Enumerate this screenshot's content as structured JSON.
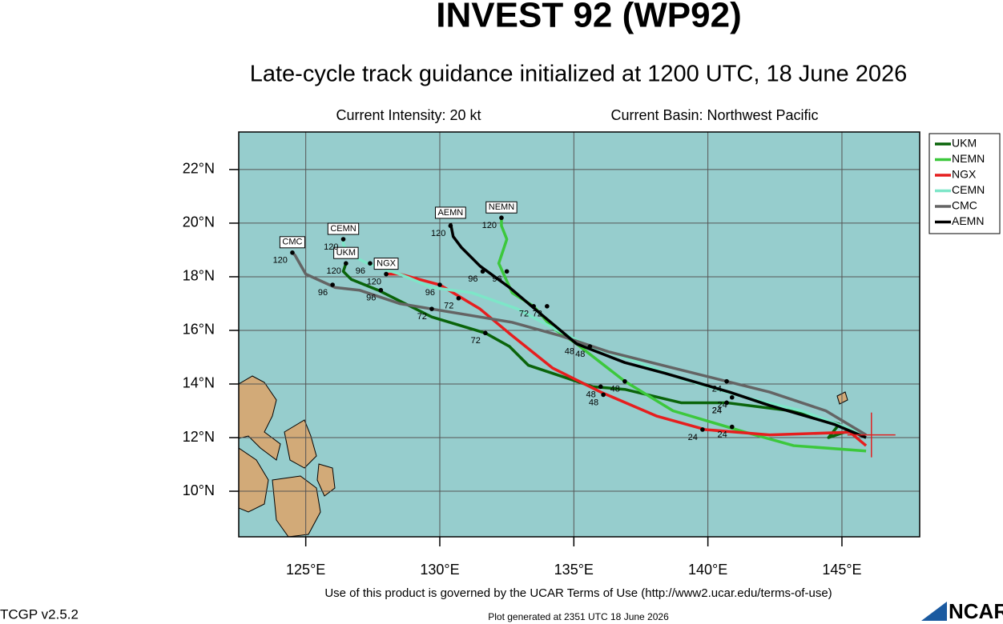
{
  "chart_data": {
    "type": "track-map",
    "title": "INVEST 92 (WP92)",
    "subtitle": "Late-cycle track guidance initialized at 1200 UTC, 18 June 2026",
    "intensity": "Current Intensity: 20 kt",
    "basin": "Current Basin: Northwest Pacific",
    "terms": "Use of this product is governed by the UCAR Terms of Use (http://www2.ucar.edu/terms-of-use)",
    "version": "TCGP v2.5.2",
    "generated": "Plot generated at 2351 UTC   18 June 2026",
    "logo": "NCAR",
    "xlim": [
      122.5,
      147.9
    ],
    "ylim": [
      8.3,
      23.4
    ],
    "xticks": [
      {
        "value": 125,
        "label": "125°E"
      },
      {
        "value": 130,
        "label": "130°E"
      },
      {
        "value": 135,
        "label": "135°E"
      },
      {
        "value": 140,
        "label": "140°E"
      },
      {
        "value": 145,
        "label": "145°E"
      }
    ],
    "yticks": [
      {
        "value": 10,
        "label": "10°N"
      },
      {
        "value": 12,
        "label": "12°N"
      },
      {
        "value": 14,
        "label": "14°N"
      },
      {
        "value": 16,
        "label": "16°N"
      },
      {
        "value": 18,
        "label": "18°N"
      },
      {
        "value": 20,
        "label": "20°N"
      },
      {
        "value": 22,
        "label": "22°N"
      }
    ],
    "grid": true,
    "legend": "top-right-outside",
    "background": "#96cdcd",
    "current_position": {
      "lon": 146.1,
      "lat": 12.1,
      "color": "#e02020"
    },
    "series": [
      {
        "name": "UKM",
        "color": "#0a640a",
        "lon": [
          145.9,
          145.4,
          144.5,
          144.9,
          143.1,
          140.7,
          139.0,
          136.9,
          135.7,
          134.5,
          133.3,
          132.6,
          131.7,
          129.7,
          127.7,
          126.7,
          126.4,
          126.5
        ],
        "lat": [
          12.1,
          12.3,
          12.0,
          12.5,
          13.0,
          13.3,
          13.3,
          13.8,
          13.9,
          14.3,
          14.7,
          15.4,
          15.9,
          16.5,
          17.5,
          17.9,
          18.2,
          18.5
        ],
        "hour_labels": [
          {
            "text": "24",
            "lon": 140.7,
            "lat": 13.3
          },
          {
            "text": "48",
            "lon": 136.0,
            "lat": 13.9
          },
          {
            "text": "72",
            "lon": 131.7,
            "lat": 15.9
          },
          {
            "text": "96",
            "lon": 127.8,
            "lat": 17.5
          },
          {
            "text": "120",
            "lon": 126.5,
            "lat": 18.5
          }
        ]
      },
      {
        "name": "NEMN",
        "color": "#3cc83c",
        "lon": [
          145.9,
          143.2,
          141.4,
          138.7,
          136.9,
          135.1,
          134.2,
          133.5,
          132.7,
          132.2,
          132.5,
          132.3,
          132.3
        ],
        "lat": [
          11.5,
          11.7,
          12.2,
          13.0,
          14.1,
          15.5,
          16.1,
          16.9,
          17.4,
          18.5,
          19.4,
          19.9,
          20.2
        ],
        "hour_labels": [
          {
            "text": "24",
            "lon": 140.9,
            "lat": 12.4
          },
          {
            "text": "48",
            "lon": 136.9,
            "lat": 14.1
          },
          {
            "text": "72",
            "lon": 133.5,
            "lat": 16.9
          },
          {
            "text": "96",
            "lon": 132.5,
            "lat": 18.2
          },
          {
            "text": "120",
            "lon": 132.3,
            "lat": 20.2
          }
        ]
      },
      {
        "name": "NGX",
        "color": "#e61e1e",
        "lon": [
          145.9,
          145.3,
          142.3,
          139.9,
          138.1,
          136.0,
          134.2,
          132.7,
          131.5,
          130.0,
          128.5,
          128.0
        ],
        "lat": [
          11.7,
          12.2,
          12.1,
          12.3,
          12.8,
          13.7,
          14.6,
          15.8,
          16.8,
          17.7,
          18.1,
          18.1
        ],
        "hour_labels": [
          {
            "text": "24",
            "lon": 139.8,
            "lat": 12.3
          },
          {
            "text": "48",
            "lon": 136.1,
            "lat": 13.6
          },
          {
            "text": "72",
            "lon": 130.7,
            "lat": 17.2
          },
          {
            "text": "96",
            "lon": 130.0,
            "lat": 17.7
          },
          {
            "text": "120",
            "lon": 128.0,
            "lat": 18.1
          }
        ]
      },
      {
        "name": "CEMN",
        "color": "#7de6c8",
        "lon": [
          145.9,
          143.5,
          141.4,
          139.0,
          136.9,
          135.6,
          134.2,
          132.9,
          131.2,
          129.7,
          128.5,
          127.3,
          126.7,
          126.4,
          126.4
        ],
        "lat": [
          12.1,
          13.0,
          13.5,
          14.2,
          15.0,
          15.4,
          16.1,
          16.8,
          17.4,
          17.6,
          18.1,
          18.5,
          18.8,
          19.2,
          19.4
        ],
        "hour_labels": [
          {
            "text": "24",
            "lon": 140.7,
            "lat": 13.3
          },
          {
            "text": "48",
            "lon": 135.2,
            "lat": 15.5
          },
          {
            "text": "96",
            "lon": 127.4,
            "lat": 18.5
          },
          {
            "text": "120",
            "lon": 126.4,
            "lat": 19.4
          }
        ]
      },
      {
        "name": "CMC",
        "color": "#646464",
        "lon": [
          145.9,
          144.4,
          142.3,
          140.7,
          138.7,
          136.3,
          134.5,
          132.7,
          129.7,
          128.5,
          127.0,
          126.1,
          125.0,
          124.6,
          124.5
        ],
        "lat": [
          12.1,
          13.0,
          13.7,
          14.1,
          14.6,
          15.2,
          15.8,
          16.3,
          16.8,
          17.0,
          17.5,
          17.6,
          18.1,
          18.8,
          18.9
        ],
        "hour_labels": [
          {
            "text": "24",
            "lon": 140.7,
            "lat": 14.1
          },
          {
            "text": "48",
            "lon": 135.6,
            "lat": 15.4
          },
          {
            "text": "72",
            "lon": 129.7,
            "lat": 16.8
          },
          {
            "text": "96",
            "lon": 126.0,
            "lat": 17.7
          },
          {
            "text": "120",
            "lon": 124.5,
            "lat": 18.9
          }
        ]
      },
      {
        "name": "AEMN",
        "color": "#000000",
        "lon": [
          145.9,
          144.7,
          142.3,
          140.8,
          138.4,
          136.9,
          135.1,
          133.9,
          132.6,
          131.5,
          130.8,
          130.5,
          130.4
        ],
        "lat": [
          12.0,
          12.5,
          13.2,
          13.7,
          14.4,
          14.8,
          15.5,
          16.5,
          17.6,
          18.4,
          19.1,
          19.5,
          20.0
        ],
        "hour_labels": [
          {
            "text": "24",
            "lon": 140.9,
            "lat": 13.5
          },
          {
            "text": "72",
            "lon": 134.0,
            "lat": 16.9
          },
          {
            "text": "96",
            "lon": 131.6,
            "lat": 18.2
          },
          {
            "text": "120",
            "lon": 130.4,
            "lat": 19.9
          }
        ]
      }
    ]
  }
}
